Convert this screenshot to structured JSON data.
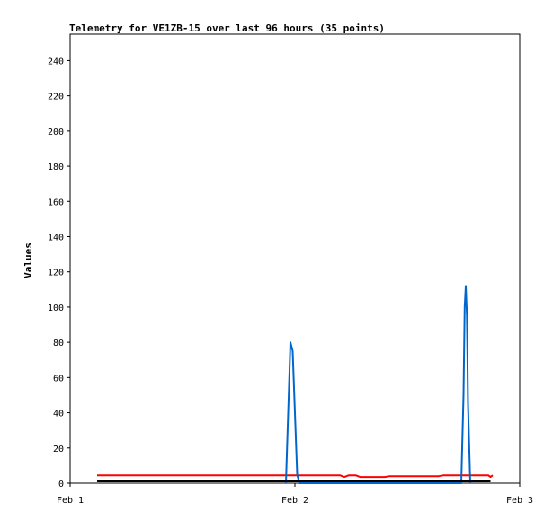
{
  "chart_data": {
    "type": "line",
    "title": "Telemetry for VE1ZB-15 over last 96 hours (35 points)",
    "xlabel": "",
    "ylabel": "Values",
    "x_axis": {
      "min_day": 1,
      "max_day": 3,
      "ticks": [
        {
          "day": 1,
          "label": "Feb 1"
        },
        {
          "day": 2,
          "label": "Feb 2"
        },
        {
          "day": 3,
          "label": "Feb 3"
        }
      ]
    },
    "ylim": [
      0,
      255
    ],
    "y_ticks": [
      0,
      20,
      40,
      60,
      80,
      100,
      120,
      140,
      160,
      180,
      200,
      220,
      240
    ],
    "grid": false,
    "series": [
      {
        "color": "#ff0000",
        "x": [
          1.12,
          2.2,
          2.22,
          2.24,
          2.27,
          2.29,
          2.4,
          2.42,
          2.64,
          2.66,
          2.86,
          2.87,
          2.88
        ],
        "y": [
          4.5,
          4.5,
          3.5,
          4.5,
          4.5,
          3.5,
          3.5,
          4,
          4,
          4.5,
          4.5,
          3.5,
          4.5
        ]
      },
      {
        "color": "#0066cc",
        "x": [
          1.96,
          1.97,
          1.98,
          1.99,
          2.0,
          2.01,
          2.02,
          2.74,
          2.75,
          2.755,
          2.76,
          2.765,
          2.77,
          2.78
        ],
        "y": [
          0,
          40,
          80,
          75,
          40,
          5,
          0,
          0,
          50,
          100,
          112,
          95,
          45,
          0
        ]
      },
      {
        "color": "#000000",
        "x": [
          1.12,
          2.87
        ],
        "y": [
          1,
          1
        ]
      }
    ]
  }
}
